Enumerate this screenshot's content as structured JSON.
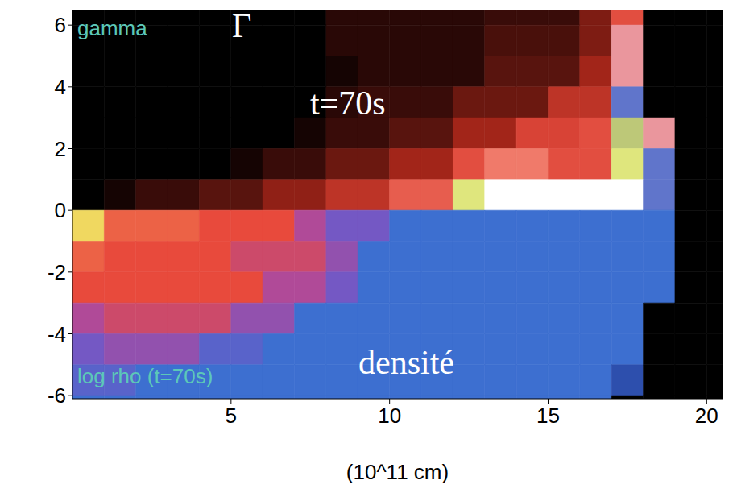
{
  "chart_data": {
    "type": "heatmap",
    "xlabel": "(10^11 cm)",
    "xlim": [
      0,
      20.5
    ],
    "xticks": [
      5,
      10,
      15,
      20
    ],
    "ylim": [
      -6.1,
      6.5
    ],
    "yticks": [
      -6,
      -4,
      -2,
      0,
      2,
      4,
      6
    ],
    "grid": false,
    "x_edges": [
      0,
      1,
      2,
      3,
      4,
      5,
      6,
      7,
      8,
      9,
      10,
      11,
      12,
      13,
      14,
      15,
      16,
      17,
      18,
      19,
      20,
      20.5
    ],
    "panels": [
      {
        "label": "gamma",
        "symbol": "Γ",
        "annotation": "t=70s",
        "zlim": [
          1,
          35
        ],
        "y_edges": [
          6.5,
          6,
          5,
          4,
          3,
          2,
          1,
          0
        ],
        "cells": [
          [
            1,
            1,
            1,
            1,
            1,
            1,
            1,
            1,
            3,
            3,
            3,
            3,
            3,
            4,
            4,
            4,
            8,
            15,
            1,
            1,
            1
          ],
          [
            1,
            1,
            1,
            1,
            1,
            1,
            1,
            1,
            3,
            3,
            3,
            3,
            3,
            5,
            5,
            5,
            8,
            20,
            1,
            1,
            1
          ],
          [
            1,
            1,
            1,
            1,
            1,
            1,
            1,
            1,
            2,
            3,
            3,
            3,
            3,
            6,
            6,
            6,
            10,
            20,
            1,
            1,
            1
          ],
          [
            1,
            1,
            1,
            1,
            1,
            1,
            1,
            1,
            3,
            4,
            4,
            4,
            7,
            7,
            7,
            12,
            12,
            25,
            1,
            1,
            1
          ],
          [
            1,
            1,
            1,
            1,
            1,
            1,
            1,
            2,
            4,
            4,
            6,
            6,
            10,
            10,
            14,
            14,
            15,
            28,
            20,
            1,
            1
          ],
          [
            1,
            1,
            1,
            1,
            1,
            2,
            4,
            4,
            7,
            7,
            10,
            10,
            15,
            18,
            18,
            15,
            15,
            30,
            25,
            1,
            1
          ],
          [
            1,
            2,
            4,
            4,
            6,
            6,
            9,
            9,
            12,
            12,
            16,
            16,
            30,
            35,
            35,
            35,
            35,
            35,
            25,
            1,
            1
          ]
        ]
      },
      {
        "label": "log rho (t=70s)",
        "annotation": "densité",
        "zlim": [
          -12,
          -3
        ],
        "y_edges": [
          0,
          -1,
          -2,
          -3,
          -4,
          -5,
          -6,
          -6.1
        ],
        "cells": [
          [
            -4,
            -5.5,
            -5.5,
            -5.5,
            -6,
            -6,
            -6,
            -7,
            -8,
            -8,
            -9,
            -9,
            -9,
            -9,
            -9,
            -9,
            -9,
            -9,
            -9,
            -12,
            -12
          ],
          [
            -5.5,
            -6,
            -6,
            -6,
            -6,
            -6.5,
            -6.5,
            -6.5,
            -7.5,
            -9,
            -9,
            -9,
            -9,
            -9,
            -9,
            -9,
            -9,
            -9,
            -9,
            -12,
            -12
          ],
          [
            -6,
            -6,
            -6,
            -6,
            -6,
            -6,
            -7,
            -7,
            -8,
            -9,
            -9,
            -9,
            -9,
            -9,
            -9,
            -9,
            -9,
            -9,
            -9,
            -12,
            -12
          ],
          [
            -7,
            -6.5,
            -6.5,
            -6.5,
            -6.5,
            -7.5,
            -7.5,
            -9,
            -9,
            -9,
            -9,
            -9,
            -9,
            -9,
            -9,
            -9,
            -9,
            -9,
            -12,
            -12,
            -12
          ],
          [
            -8,
            -7.5,
            -7.5,
            -7.5,
            -8.5,
            -8.5,
            -9,
            -9,
            -9,
            -9,
            -9,
            -9,
            -9,
            -9,
            -9,
            -9,
            -9,
            -9,
            -12,
            -12,
            -12
          ],
          [
            -8.5,
            -8.5,
            -9,
            -9,
            -9,
            -9,
            -9,
            -9,
            -9,
            -9,
            -9,
            -9,
            -9,
            -9,
            -9,
            -9,
            -9,
            -9.5,
            -12,
            -12,
            -12
          ],
          [
            -9,
            -9,
            -9,
            -9,
            -9,
            -9,
            -9,
            -9,
            -9,
            -9,
            -9,
            -9,
            -9,
            -9,
            -9,
            -9,
            -9,
            -12,
            -12,
            -12,
            -12
          ]
        ]
      }
    ]
  }
}
